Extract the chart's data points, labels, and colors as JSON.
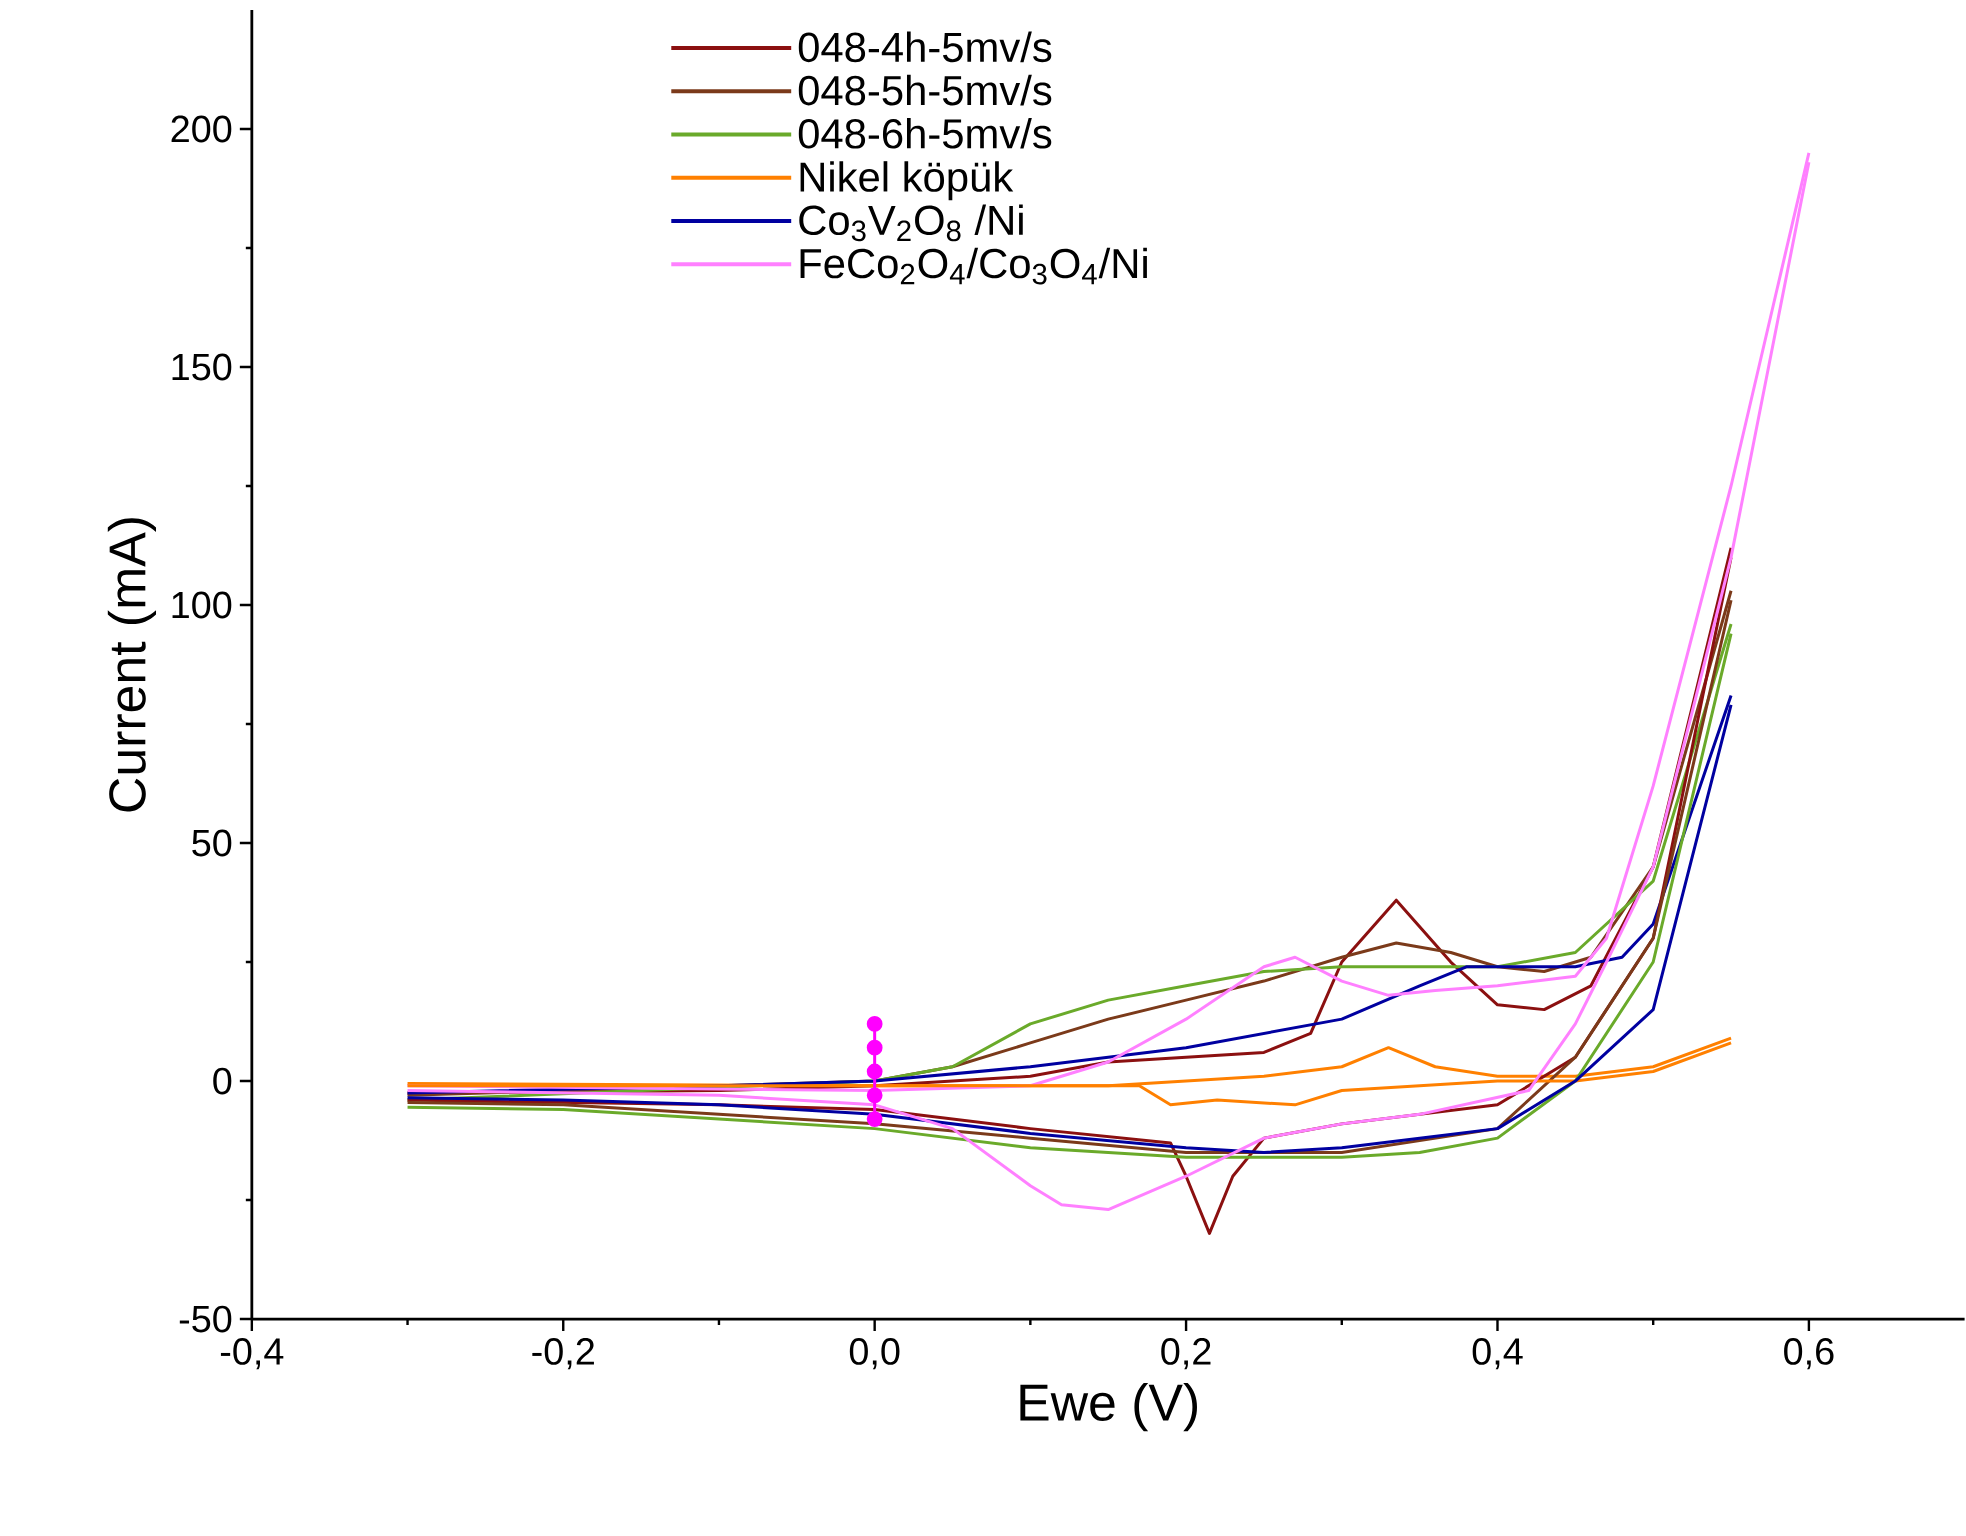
{
  "chart_data": {
    "type": "line",
    "xlabel": "Ewe (V)",
    "ylabel": "Current (mA)",
    "xlim": [
      -0.4,
      0.7
    ],
    "ylim": [
      -50,
      225
    ],
    "xticks": [
      {
        "value": -0.4,
        "label": "-0,4"
      },
      {
        "value": -0.2,
        "label": "-0,2"
      },
      {
        "value": 0.0,
        "label": "0,0"
      },
      {
        "value": 0.2,
        "label": "0,2"
      },
      {
        "value": 0.4,
        "label": "0,4"
      },
      {
        "value": 0.6,
        "label": "0,6"
      }
    ],
    "yticks": [
      -50,
      0,
      50,
      100,
      150,
      200
    ],
    "legend": "top",
    "series": [
      {
        "name": "048-4h-5mv/s",
        "color": "#8b1010",
        "x": [
          -0.3,
          -0.1,
          0.0,
          0.1,
          0.15,
          0.2,
          0.25,
          0.28,
          0.3,
          0.335,
          0.37,
          0.4,
          0.43,
          0.46,
          0.5,
          0.55
        ],
        "values": [
          -2.5,
          -2,
          -1,
          1,
          4,
          5,
          6,
          10,
          25,
          38,
          25,
          16,
          15,
          20,
          45,
          112
        ]
      },
      {
        "name": "048-5h-5mv/s",
        "color": "#7b3a1a",
        "x": [
          -0.3,
          0.0,
          0.05,
          0.1,
          0.15,
          0.2,
          0.25,
          0.3,
          0.335,
          0.37,
          0.4,
          0.43,
          0.46,
          0.5,
          0.55
        ],
        "values": [
          -3,
          0,
          3,
          8,
          13,
          17,
          21,
          26,
          29,
          27,
          24,
          23,
          26,
          45,
          103
        ]
      },
      {
        "name": "048-6h-5mv/s",
        "color": "#6aaa2a",
        "x": [
          -0.3,
          0.0,
          0.05,
          0.1,
          0.15,
          0.2,
          0.25,
          0.3,
          0.35,
          0.4,
          0.45,
          0.5,
          0.55
        ],
        "values": [
          -4,
          0,
          3,
          12,
          17,
          20,
          23,
          24,
          24,
          24,
          27,
          42,
          96
        ]
      },
      {
        "name": "Nikel köpük",
        "color": "#ff8000",
        "x": [
          -0.3,
          0.0,
          0.15,
          0.25,
          0.3,
          0.33,
          0.36,
          0.4,
          0.45,
          0.5,
          0.55
        ],
        "values": [
          -0.5,
          -1,
          -1,
          1,
          3,
          7,
          3,
          1,
          1,
          3,
          9
        ]
      },
      {
        "name": "Co$_{3}$V$_{2}$O$_{8}$ /Ni",
        "color": "#0000a0",
        "x": [
          -0.3,
          -0.1,
          0.0,
          0.1,
          0.2,
          0.3,
          0.35,
          0.38,
          0.4,
          0.45,
          0.48,
          0.5,
          0.55
        ],
        "values": [
          -2.5,
          -1,
          0,
          3,
          7,
          13,
          20,
          24,
          24,
          24,
          26,
          33,
          81
        ]
      },
      {
        "name": "FeCo$_{2}$O$_{4}$/Co$_{3}$O$_{4}$/Ni",
        "color": "#ff80ff",
        "x": [
          -0.3,
          0.0,
          0.1,
          0.15,
          0.2,
          0.25,
          0.27,
          0.3,
          0.33,
          0.36,
          0.4,
          0.45,
          0.47,
          0.5,
          0.55,
          0.6
        ],
        "values": [
          -1,
          -2,
          -1,
          4,
          13,
          24,
          26,
          21,
          18,
          19,
          20,
          22,
          30,
          62,
          125,
          195
        ]
      },
      {
        "color": "#8b1010",
        "x": [
          -0.3,
          -0.1,
          0.0,
          0.1,
          0.19,
          0.2,
          0.215,
          0.23,
          0.25,
          0.3,
          0.4,
          0.45,
          0.5,
          0.55
        ],
        "values": [
          -4,
          -5,
          -6,
          -10,
          -13,
          -20,
          -32,
          -20,
          -12,
          -9,
          -5,
          5,
          30,
          110
        ]
      },
      {
        "color": "#7b3a1a",
        "x": [
          -0.3,
          -0.2,
          -0.1,
          0.0,
          0.1,
          0.2,
          0.3,
          0.4,
          0.45,
          0.5,
          0.55
        ],
        "values": [
          -4.5,
          -5,
          -7,
          -9,
          -12,
          -15,
          -15,
          -10,
          5,
          30,
          101
        ]
      },
      {
        "color": "#6aaa2a",
        "x": [
          -0.3,
          -0.2,
          -0.1,
          0.0,
          0.1,
          0.2,
          0.3,
          0.35,
          0.4,
          0.45,
          0.5,
          0.55
        ],
        "values": [
          -5.5,
          -6,
          -8,
          -10,
          -14,
          -16,
          -16,
          -15,
          -12,
          0,
          25,
          94
        ]
      },
      {
        "color": "#ff8000",
        "x": [
          -0.3,
          0.0,
          0.1,
          0.17,
          0.19,
          0.22,
          0.27,
          0.3,
          0.35,
          0.4,
          0.45,
          0.5,
          0.55
        ],
        "values": [
          -1,
          -1,
          -1,
          -1,
          -5,
          -4,
          -5,
          -2,
          -1,
          0,
          0,
          2,
          8
        ]
      },
      {
        "color": "#0000a0",
        "x": [
          -0.3,
          -0.2,
          -0.1,
          0.0,
          0.1,
          0.2,
          0.25,
          0.3,
          0.35,
          0.4,
          0.45,
          0.5,
          0.55
        ],
        "values": [
          -3.5,
          -4,
          -5,
          -7,
          -11,
          -14,
          -15,
          -14,
          -12,
          -10,
          0,
          15,
          79
        ]
      },
      {
        "color": "#ff80ff",
        "x": [
          -0.3,
          -0.1,
          0.0,
          0.05,
          0.1,
          0.12,
          0.15,
          0.2,
          0.25,
          0.3,
          0.35,
          0.42,
          0.45,
          0.47,
          0.5,
          0.55,
          0.6
        ],
        "values": [
          -2,
          -3,
          -5,
          -10,
          -22,
          -26,
          -27,
          -20,
          -12,
          -9,
          -7,
          -2,
          12,
          25,
          45,
          110,
          193
        ]
      },
      {
        "type": "line",
        "marker": "circle",
        "color": "#ff00ff",
        "x": [
          0.0,
          0.0,
          0.0,
          0.0,
          0.0
        ],
        "values": [
          12,
          7,
          2,
          -3,
          -8
        ]
      }
    ]
  }
}
